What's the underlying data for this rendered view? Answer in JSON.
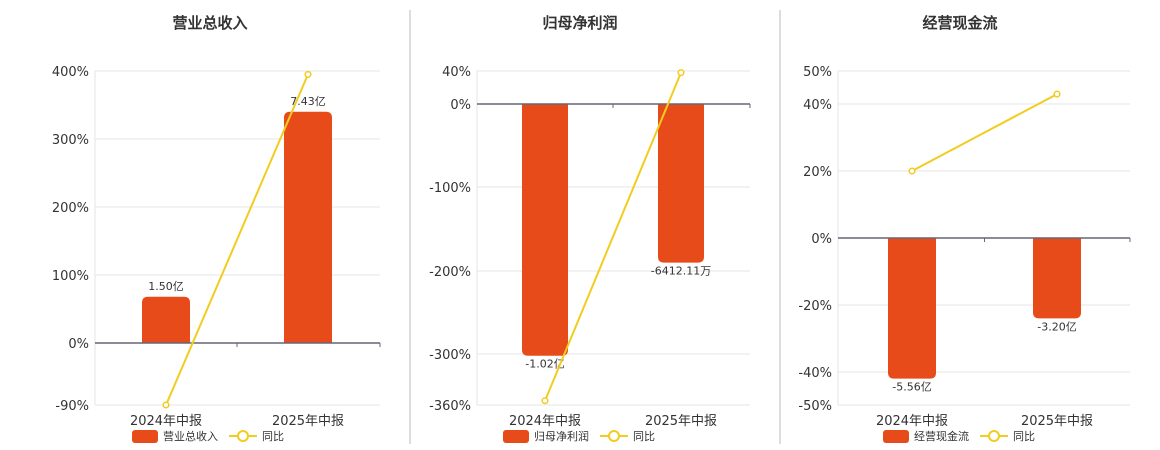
{
  "colors": {
    "bar": "#E84B1A",
    "line": "#F2CC1F",
    "grid": "#E6E6E6",
    "axis": "#666677",
    "separator": "#BBBBBB"
  },
  "chart_data": [
    {
      "type": "bar",
      "title": "营业总收入",
      "categories": [
        "2024年中报",
        "2025年中报"
      ],
      "series": [
        {
          "name": "营业总收入",
          "type": "bar",
          "values": [
            1.5,
            7.43
          ],
          "labels": [
            "1.50亿",
            "7.43亿"
          ],
          "value_scale_pct": [
            68,
            340
          ]
        },
        {
          "name": "同比",
          "type": "line",
          "values": [
            -90,
            395
          ]
        }
      ],
      "yticks": [
        400,
        300,
        200,
        100,
        0,
        -90
      ],
      "ytick_labels": [
        "400%",
        "300%",
        "200%",
        "100%",
        "0%",
        "-90%"
      ],
      "ylim": [
        -90,
        400
      ],
      "grid": true,
      "legend": "bottom"
    },
    {
      "type": "bar",
      "title": "归母净利润",
      "categories": [
        "2024年中报",
        "2025年中报"
      ],
      "series": [
        {
          "name": "归母净利润",
          "type": "bar",
          "values": [
            -1.02,
            -0.641211
          ],
          "labels": [
            "-1.02亿",
            "-6412.11万"
          ],
          "value_scale_pct": [
            -302,
            -190
          ]
        },
        {
          "name": "同比",
          "type": "line",
          "values": [
            -355,
            38
          ]
        }
      ],
      "yticks": [
        40,
        0,
        -100,
        -200,
        -300,
        -360
      ],
      "ytick_labels": [
        "40%",
        "0%",
        "-100%",
        "-200%",
        "-300%",
        "-360%"
      ],
      "ylim": [
        -360,
        40
      ],
      "grid": true,
      "legend": "bottom"
    },
    {
      "type": "bar",
      "title": "经营现金流",
      "categories": [
        "2024年中报",
        "2025年中报"
      ],
      "series": [
        {
          "name": "经营现金流",
          "type": "bar",
          "values": [
            -5.56,
            -3.2
          ],
          "labels": [
            "-5.56亿",
            "-3.20亿"
          ],
          "value_scale_pct": [
            -42,
            -24
          ]
        },
        {
          "name": "同比",
          "type": "line",
          "values": [
            20,
            43
          ]
        }
      ],
      "yticks": [
        50,
        40,
        20,
        0,
        -20,
        -40,
        -50
      ],
      "ytick_labels": [
        "50%",
        "40%",
        "20%",
        "0%",
        "-20%",
        "-40%",
        "-50%"
      ],
      "ylim": [
        -50,
        50
      ],
      "grid": true,
      "legend": "bottom"
    }
  ]
}
